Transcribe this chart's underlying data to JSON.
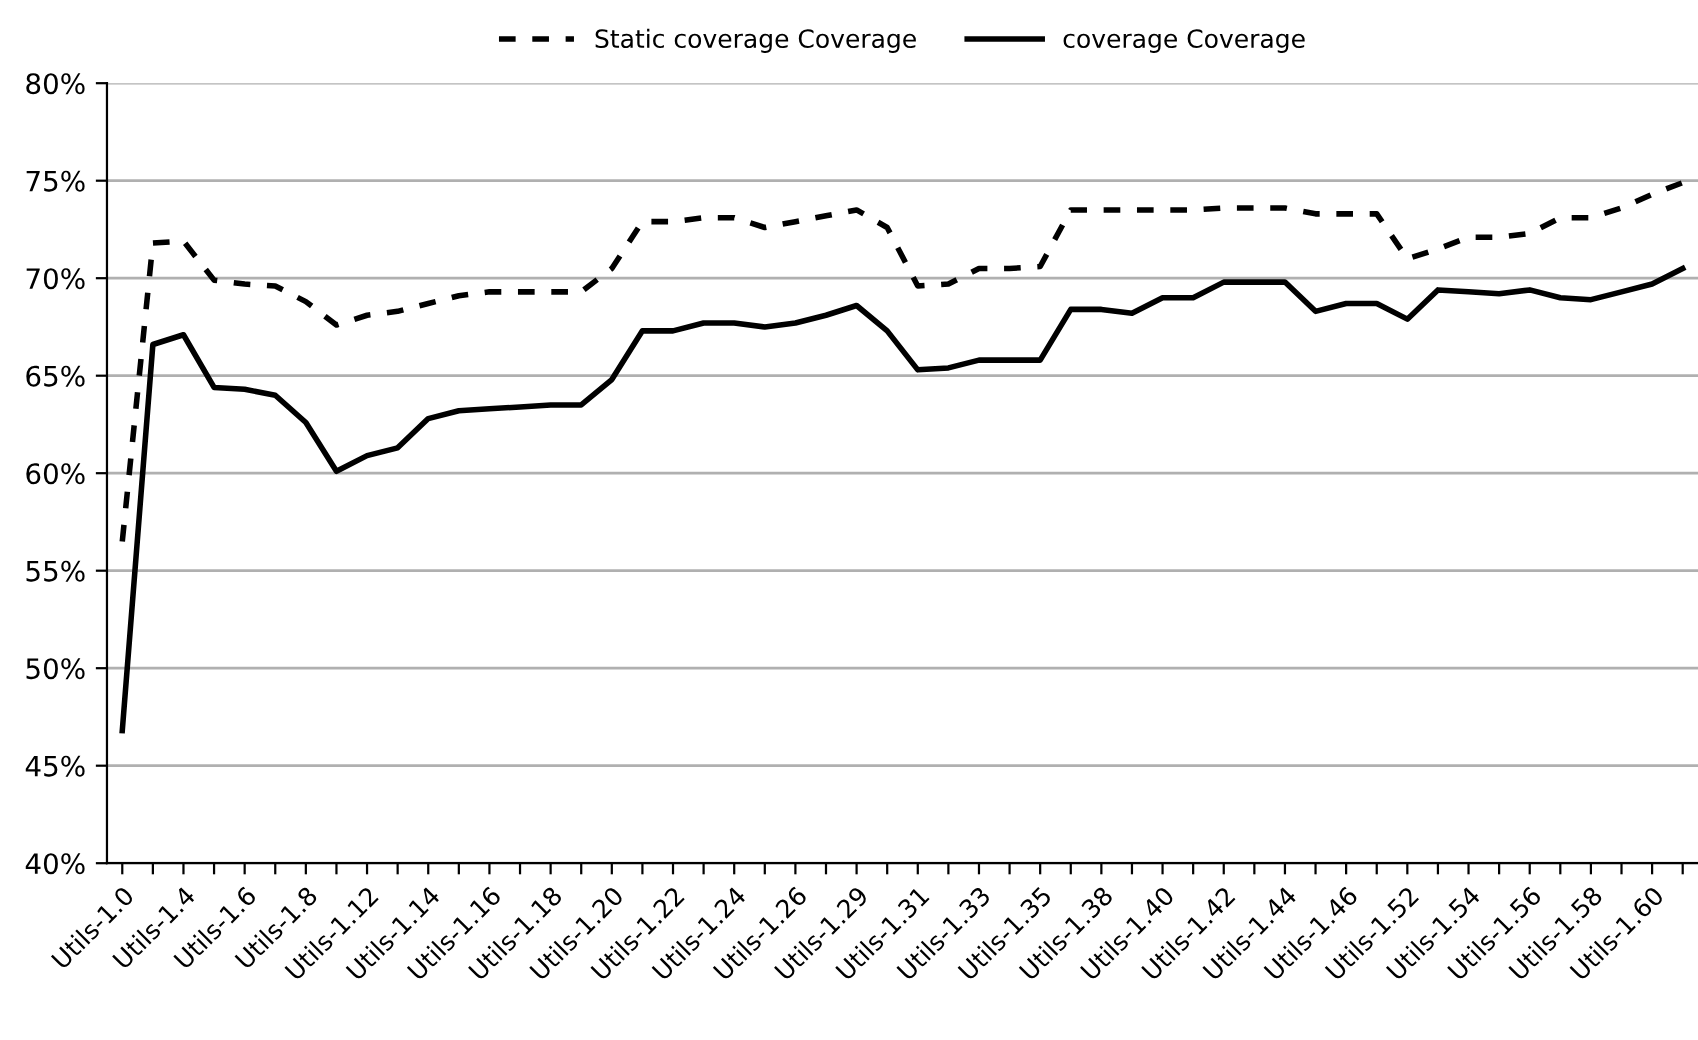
{
  "chart_data": {
    "type": "line",
    "categories": [
      "Utils-1.0",
      null,
      "Utils-1.4",
      null,
      "Utils-1.6",
      null,
      "Utils-1.8",
      null,
      "Utils-1.12",
      null,
      "Utils-1.14",
      null,
      "Utils-1.16",
      null,
      "Utils-1.18",
      null,
      "Utils-1.20",
      null,
      "Utils-1.22",
      null,
      "Utils-1.24",
      null,
      "Utils-1.26",
      null,
      "Utils-1.29",
      null,
      "Utils-1.31",
      null,
      "Utils-1.33",
      null,
      "Utils-1.35",
      null,
      "Utils-1.38",
      null,
      "Utils-1.40",
      null,
      "Utils-1.42",
      null,
      "Utils-1.44",
      null,
      "Utils-1.46",
      null,
      "Utils-1.52",
      null,
      "Utils-1.54",
      null,
      "Utils-1.56",
      null,
      "Utils-1.58",
      null,
      "Utils-1.60",
      null
    ],
    "series": [
      {
        "name": "Static coverage Coverage",
        "color": "#000000",
        "line_style": "dashed",
        "values": [
          56.5,
          71.8,
          71.9,
          69.9,
          69.7,
          69.6,
          68.8,
          67.6,
          68.1,
          68.3,
          68.7,
          69.1,
          69.3,
          69.3,
          69.3,
          69.3,
          70.5,
          72.9,
          72.9,
          73.1,
          73.1,
          72.6,
          72.9,
          73.2,
          73.5,
          72.6,
          69.6,
          69.7,
          70.5,
          70.5,
          70.6,
          73.5,
          73.5,
          73.5,
          73.5,
          73.5,
          73.6,
          73.6,
          73.6,
          73.3,
          73.3,
          73.3,
          71.0,
          71.5,
          72.1,
          72.1,
          72.3,
          73.1,
          73.1,
          73.6,
          74.3,
          74.9
        ]
      },
      {
        "name": "coverage Coverage",
        "color": "#000000",
        "line_style": "solid",
        "values": [
          46.8,
          66.6,
          67.1,
          64.4,
          64.3,
          64.0,
          62.6,
          60.1,
          60.9,
          61.3,
          62.8,
          63.2,
          63.3,
          63.4,
          63.5,
          63.5,
          64.8,
          67.3,
          67.3,
          67.7,
          67.7,
          67.5,
          67.7,
          68.1,
          68.6,
          67.3,
          65.3,
          65.4,
          65.8,
          65.8,
          65.8,
          68.4,
          68.4,
          68.2,
          69.0,
          69.0,
          69.8,
          69.8,
          69.8,
          68.3,
          68.7,
          68.7,
          67.9,
          69.4,
          69.3,
          69.2,
          69.4,
          69.0,
          68.9,
          69.3,
          69.7,
          70.5
        ]
      }
    ],
    "ylim": [
      40,
      80
    ],
    "yticks": [
      {
        "value": 40,
        "label": "40%"
      },
      {
        "value": 45,
        "label": "45%"
      },
      {
        "value": 50,
        "label": "50%"
      },
      {
        "value": 55,
        "label": "55%"
      },
      {
        "value": 60,
        "label": "60%"
      },
      {
        "value": 65,
        "label": "65%"
      },
      {
        "value": 70,
        "label": "70%"
      },
      {
        "value": 75,
        "label": "75%"
      },
      {
        "value": 80,
        "label": "80%"
      }
    ],
    "grid": "y",
    "legend": "top",
    "marker": "none"
  }
}
